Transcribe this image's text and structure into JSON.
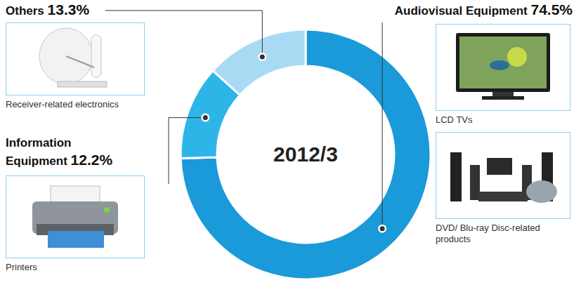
{
  "chart_data": {
    "type": "pie",
    "title": "2012/3",
    "categories": [
      "Audiovisual Equipment",
      "Information Equipment",
      "Others"
    ],
    "values": [
      74.5,
      12.2,
      13.3
    ],
    "value_labels": [
      "74.5%",
      "12.2%",
      "13.3%"
    ],
    "data_labels": true,
    "colors": [
      "#1a9ad8",
      "#2db5e8",
      "#a8dbf3"
    ],
    "examples": [
      [
        "LCD TVs",
        "DVD/ Blu-ray Disc-related products"
      ],
      [
        "Printers"
      ],
      [
        "Receiver-related electronics"
      ]
    ]
  }
}
